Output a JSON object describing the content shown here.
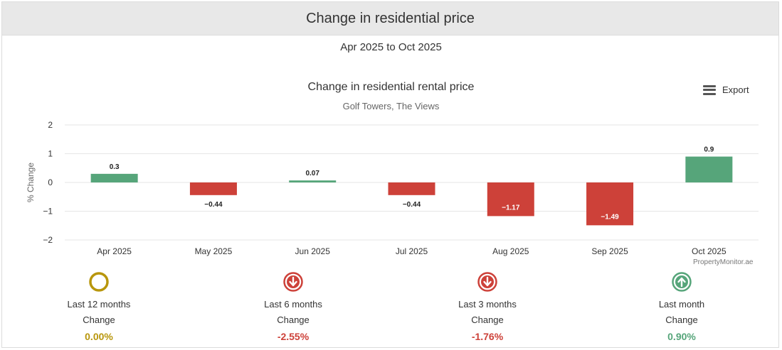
{
  "header": {
    "title": "Change in residential price"
  },
  "period": "Apr 2025 to Oct 2025",
  "toolbar": {
    "export_label": "Export"
  },
  "credit": "PropertyMonitor.ae",
  "colors": {
    "positive": "#56a57a",
    "negative": "#cd4139",
    "neutral": "#b8960c",
    "grid": "#e6e6e6"
  },
  "chart_data": {
    "type": "bar",
    "title": "Change in residential rental price",
    "subtitle": "Golf Towers, The Views",
    "xlabel": "",
    "ylabel": "% Change",
    "ylim": [
      -2,
      2
    ],
    "yticks": [
      2,
      1,
      0,
      -1,
      -2
    ],
    "ytick_labels": [
      "2",
      "1",
      "0",
      "−1",
      "−2"
    ],
    "categories": [
      "Apr 2025",
      "May 2025",
      "Jun 2025",
      "Jul 2025",
      "Aug 2025",
      "Sep 2025",
      "Oct 2025"
    ],
    "values": [
      0.3,
      -0.44,
      0.07,
      -0.44,
      -1.17,
      -1.49,
      0.9
    ],
    "data_labels": [
      "0.3",
      "−0.44",
      "0.07",
      "−0.44",
      "−1.17",
      "−1.49",
      "0.9"
    ],
    "grid": true,
    "legend": "none"
  },
  "stats": [
    {
      "period": "Last 12 months",
      "label": "Change",
      "value": "0.00%",
      "trend": "neutral",
      "icon": "circle-ring-icon"
    },
    {
      "period": "Last 6 months",
      "label": "Change",
      "value": "-2.55%",
      "trend": "down",
      "icon": "arrow-down-circle-icon"
    },
    {
      "period": "Last 3 months",
      "label": "Change",
      "value": "-1.76%",
      "trend": "down",
      "icon": "arrow-down-circle-icon"
    },
    {
      "period": "Last month",
      "label": "Change",
      "value": "0.90%",
      "trend": "up",
      "icon": "arrow-up-circle-icon"
    }
  ]
}
